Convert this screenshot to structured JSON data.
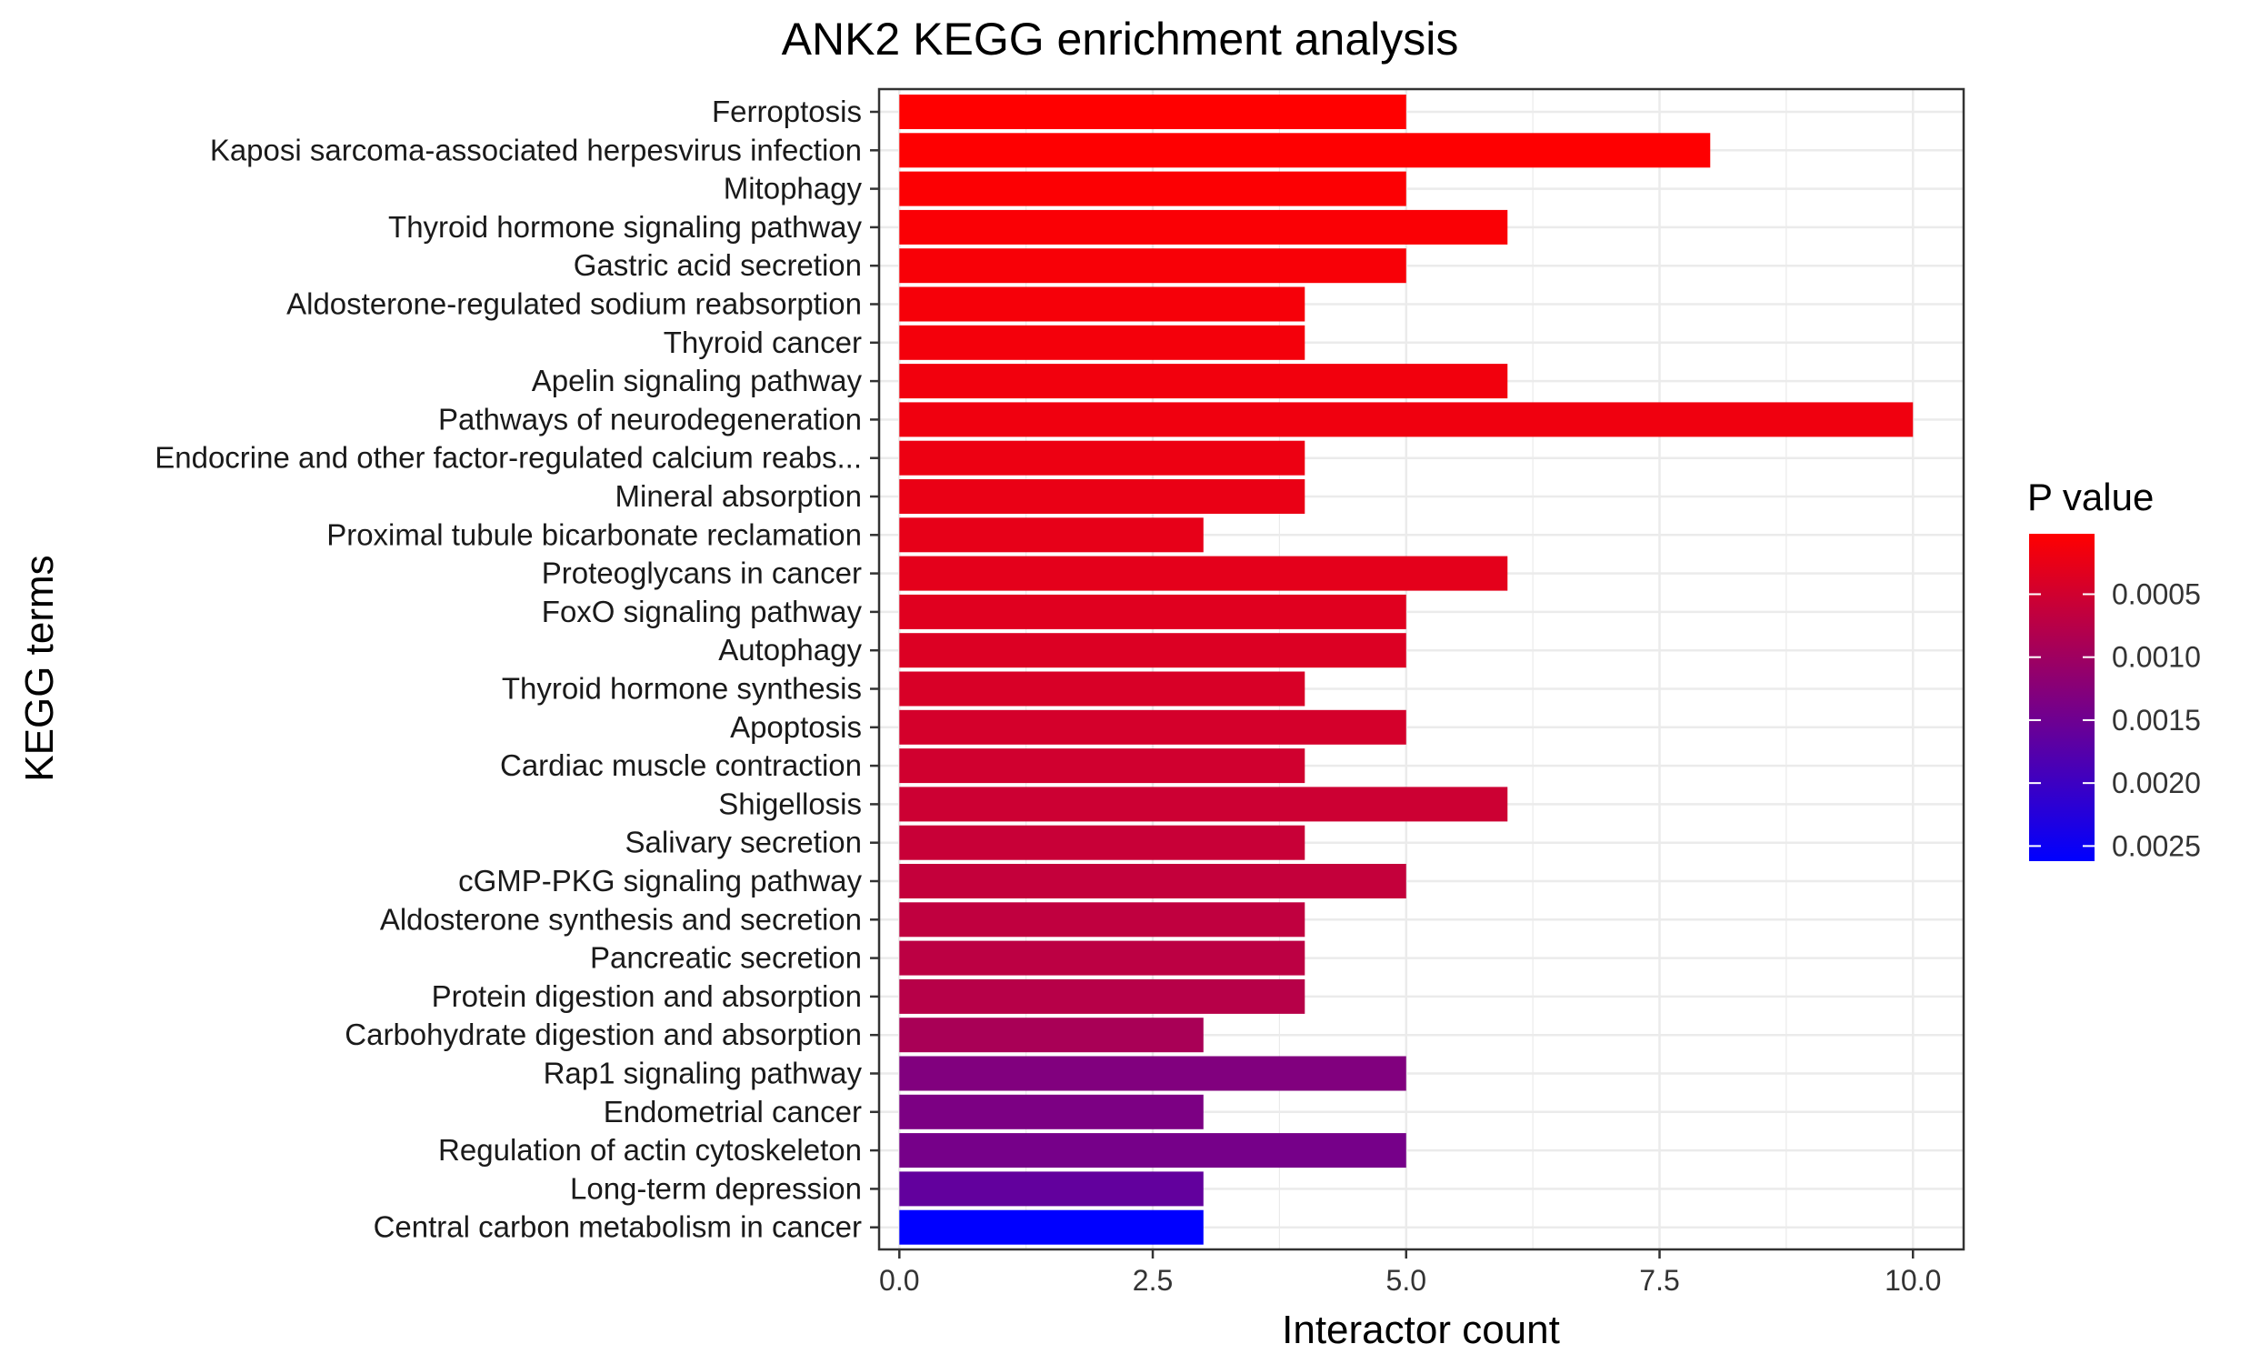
{
  "chart_data": {
    "type": "bar",
    "orientation": "horizontal",
    "title": "ANK2 KEGG enrichment analysis",
    "xlabel": "Interactor count",
    "ylabel": "KEGG terms",
    "xlim": [
      -0.2,
      10.5
    ],
    "xticks": [
      "0.0",
      "2.5",
      "5.0",
      "7.5",
      "10.0"
    ],
    "grid": true,
    "legend": {
      "title": "P value",
      "placement": "right",
      "ticks": [
        "0.0005",
        "0.0010",
        "0.0015",
        "0.0020",
        "0.0025"
      ],
      "tick_values": [
        0.0005,
        0.001,
        0.0015,
        0.002,
        0.0025
      ],
      "range": [
        2e-05,
        0.00262
      ],
      "low_color": "#FF0000",
      "high_color": "#0000FF"
    },
    "categories": [
      "Ferroptosis",
      "Kaposi sarcoma-associated herpesvirus infection",
      "Mitophagy",
      "Thyroid hormone signaling pathway",
      "Gastric acid secretion",
      "Aldosterone-regulated sodium reabsorption",
      "Thyroid cancer",
      "Apelin signaling pathway",
      "Pathways of neurodegeneration",
      "Endocrine and other factor-regulated calcium reabs...",
      "Mineral absorption",
      "Proximal tubule bicarbonate reclamation",
      "Proteoglycans in cancer",
      "FoxO signaling pathway",
      "Autophagy",
      "Thyroid hormone synthesis",
      "Apoptosis",
      "Cardiac muscle contraction",
      "Shigellosis",
      "Salivary secretion",
      "cGMP-PKG signaling pathway",
      "Aldosterone synthesis and secretion",
      "Pancreatic secretion",
      "Protein digestion and absorption",
      "Carbohydrate digestion and absorption",
      "Rap1 signaling pathway",
      "Endometrial cancer",
      "Regulation of actin cytoskeleton",
      "Long-term depression",
      "Central carbon metabolism in cancer"
    ],
    "values": [
      5,
      8,
      5,
      6,
      5,
      4,
      4,
      6,
      10,
      4,
      4,
      3,
      6,
      5,
      5,
      4,
      5,
      4,
      6,
      4,
      5,
      4,
      4,
      4,
      3,
      5,
      3,
      5,
      3,
      3
    ],
    "p_values": [
      2e-05,
      3e-05,
      5e-05,
      7e-05,
      9e-05,
      0.00011,
      0.00013,
      0.00015,
      0.00017,
      0.0002,
      0.00023,
      0.00026,
      0.0003,
      0.00034,
      0.00038,
      0.00042,
      0.00046,
      0.0005,
      0.00054,
      0.00058,
      0.00062,
      0.00066,
      0.0007,
      0.00075,
      0.0009,
      0.0013,
      0.00136,
      0.00142,
      0.00162,
      0.00262
    ]
  }
}
